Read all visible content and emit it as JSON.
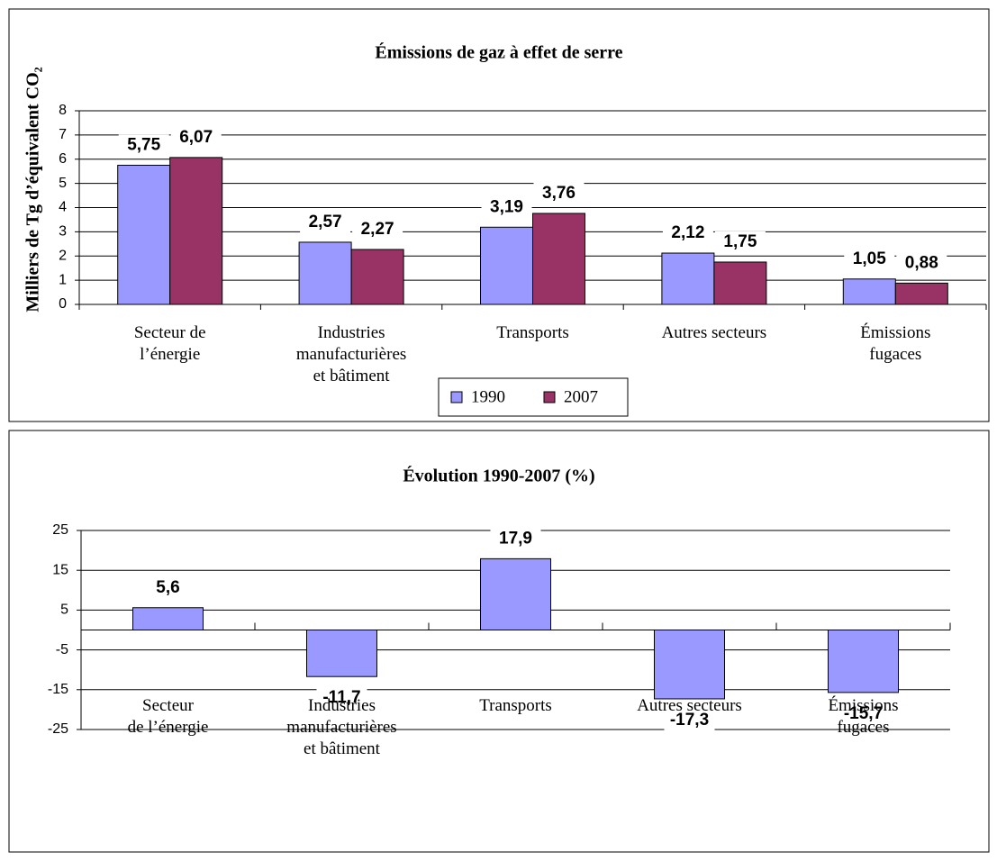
{
  "chart_data": [
    {
      "type": "bar",
      "title": "Émissions de gaz à effet de serre",
      "y_label": "Milliers de Tg d’équivalent CO₂",
      "categories": [
        "Secteur de\nl’énergie",
        "Industries\nmanufacturières\net bâtiment",
        "Transports",
        "Autres secteurs",
        "Émissions\nfugaces"
      ],
      "series": [
        {
          "name": "1990",
          "color": "#9999ff",
          "values": [
            5.75,
            2.57,
            3.19,
            2.12,
            1.05
          ],
          "value_labels": [
            "5,75",
            "2,57",
            "3,19",
            "2,12",
            "1,05"
          ]
        },
        {
          "name": "2007",
          "color": "#993366",
          "values": [
            6.07,
            2.27,
            3.76,
            1.75,
            0.88
          ],
          "value_labels": [
            "6,07",
            "2,27",
            "3,76",
            "1,75",
            "0,88"
          ]
        }
      ],
      "ylim": [
        0,
        8
      ],
      "yticks": [
        0,
        1,
        2,
        3,
        4,
        5,
        6,
        7,
        8
      ],
      "grid": true,
      "legend": "bottom"
    },
    {
      "type": "bar",
      "title": "Évolution 1990-2007 (%)",
      "categories": [
        "Secteur\nde l’énergie",
        "Industries\nmanufacturières\net bâtiment",
        "Transports",
        "Autres secteurs",
        "Émissions\nfugaces"
      ],
      "series": [
        {
          "name": null,
          "color": "#9999ff",
          "values": [
            5.6,
            -11.7,
            17.9,
            -17.3,
            -15.7
          ],
          "value_labels": [
            "5,6",
            "-11,7",
            "17,9",
            "-17,3",
            "-15,7"
          ]
        }
      ],
      "ylim": [
        -25,
        25
      ],
      "yticks": [
        -25,
        -15,
        -5,
        5,
        15,
        25
      ],
      "grid": true
    }
  ]
}
